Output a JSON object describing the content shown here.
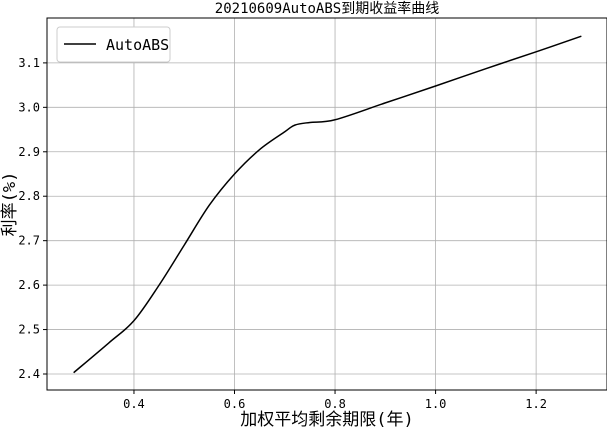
{
  "chart_data": {
    "type": "line",
    "title": "20210609AutoABS到期收益率曲线",
    "xlabel": "加权平均剩余期限(年)",
    "ylabel": "利率(%)",
    "xlim": [
      0.227,
      1.341
    ],
    "ylim": [
      2.364,
      3.201
    ],
    "xticks": [
      0.4,
      0.6,
      0.8,
      1.0,
      1.2
    ],
    "xtick_labels": [
      "0.4",
      "0.6",
      "0.8",
      "1.0",
      "1.2"
    ],
    "yticks": [
      2.4,
      2.5,
      2.6,
      2.7,
      2.8,
      2.9,
      3.0,
      3.1
    ],
    "ytick_labels": [
      "2.4",
      "2.5",
      "2.6",
      "2.7",
      "2.8",
      "2.9",
      "3.0",
      "3.1"
    ],
    "grid": true,
    "legend": "top-left",
    "series": [
      {
        "name": "AutoABS",
        "color": "#000000",
        "x": [
          0.28,
          0.35,
          0.4,
          0.45,
          0.5,
          0.55,
          0.6,
          0.65,
          0.7,
          0.72,
          0.75,
          0.8,
          0.9,
          1.0,
          1.1,
          1.2,
          1.29
        ],
        "y": [
          2.403,
          2.47,
          2.52,
          2.6,
          2.69,
          2.78,
          2.85,
          2.905,
          2.945,
          2.96,
          2.966,
          2.972,
          3.01,
          3.048,
          3.087,
          3.125,
          3.16
        ]
      }
    ]
  }
}
